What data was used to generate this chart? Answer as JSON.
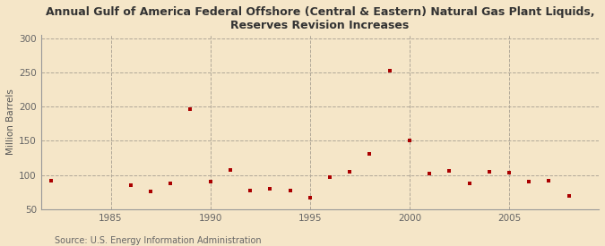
{
  "title": "Annual Gulf of America Federal Offshore (Central & Eastern) Natural Gas Plant Liquids,\nReserves Revision Increases",
  "ylabel": "Million Barrels",
  "source": "Source: U.S. Energy Information Administration",
  "background_color": "#f5e6c8",
  "plot_bg_color": "#f5e6c8",
  "marker_color": "#aa0000",
  "years": [
    1982,
    1986,
    1987,
    1988,
    1989,
    1990,
    1991,
    1992,
    1993,
    1994,
    1995,
    1996,
    1997,
    1998,
    1999,
    2000,
    2001,
    2002,
    2003,
    2004,
    2005,
    2006,
    2007,
    2008
  ],
  "values": [
    92,
    85,
    76,
    88,
    197,
    90,
    107,
    78,
    80,
    78,
    67,
    97,
    105,
    131,
    253,
    150,
    102,
    106,
    88,
    105,
    103,
    90,
    92,
    69
  ],
  "ylim": [
    50,
    305
  ],
  "yticks": [
    50,
    100,
    150,
    200,
    250,
    300
  ],
  "xlim": [
    1981.5,
    2009.5
  ],
  "xticks": [
    1985,
    1990,
    1995,
    2000,
    2005
  ],
  "grid_color": "#b0a898",
  "title_fontsize": 9,
  "ylabel_fontsize": 7.5,
  "tick_fontsize": 7.5,
  "source_fontsize": 7
}
